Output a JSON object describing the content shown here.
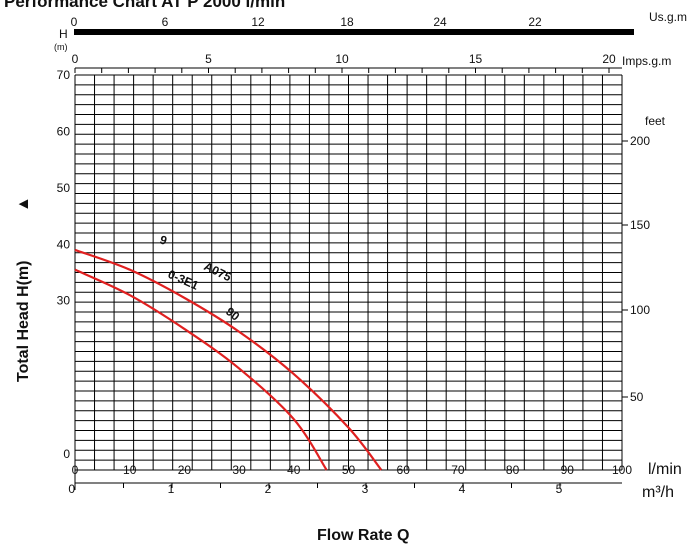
{
  "chart_data": {
    "type": "line",
    "title": "Performance Chart AT P 2000 l/min",
    "xlabel": "Flow Rate Q",
    "ylabel": "Total Head H(m)",
    "ylabel_arrow": "▲",
    "x_unit_label": "l/min",
    "x_unit_label_m3h": "m³/h",
    "x_unit_label_usgm": "Us.g.m",
    "x_unit_label_imps": "Imps.g.m",
    "y_unit_label_left": "H",
    "y_unit_label_left_sub": "(m)",
    "y_unit_label_right": "feet",
    "xlim": [
      0,
      100
    ],
    "ylim": [
      0,
      70
    ],
    "grid": true,
    "x_ticks_lmin": [
      "0",
      "10",
      "20",
      "30",
      "40",
      "50",
      "60",
      "70",
      "80",
      "90",
      "100"
    ],
    "x_ticks_m3h": [
      "0",
      "1",
      "2",
      "3",
      "4",
      "5"
    ],
    "x_ticks_usgm": [
      "0",
      "6",
      "12",
      "18",
      "24",
      "22"
    ],
    "x_ticks_imps": [
      "0",
      "5",
      "10",
      "15",
      "20"
    ],
    "y_ticks_left": [
      "0",
      "30",
      "40",
      "50",
      "60",
      "70"
    ],
    "y_ticks_feet": [
      "50",
      "100",
      "150",
      "200"
    ],
    "series": [
      {
        "name": "9 A075 90",
        "color": "#e02020",
        "x": [
          0,
          10,
          20,
          30,
          40,
          50,
          56
        ],
        "y": [
          39,
          35.5,
          30.5,
          24.5,
          17,
          7.5,
          0
        ]
      },
      {
        "name": "0-3E1",
        "color": "#e02020",
        "x": [
          0,
          10,
          20,
          30,
          40,
          46
        ],
        "y": [
          35.5,
          31,
          25,
          18,
          9,
          0
        ]
      }
    ],
    "curve_labels": [
      "9",
      "A075",
      "0-3E1",
      "90"
    ]
  }
}
